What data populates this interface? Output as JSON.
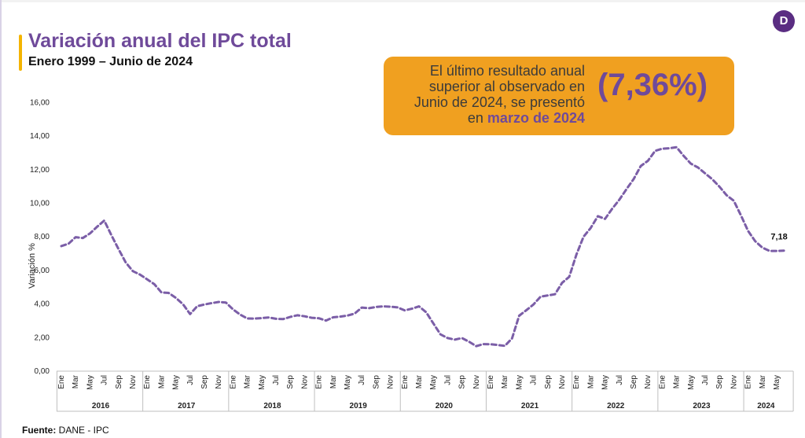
{
  "header": {
    "title": "Variación anual del IPC total",
    "subtitle": "Enero 1999 – Junio de 2024",
    "logo_letter": "D"
  },
  "callout": {
    "line1": "El último resultado anual",
    "line2": "superior al observado en",
    "line3": "Junio de 2024, se presentó",
    "line4_prefix": "en ",
    "line4_highlight": "marzo de 2024",
    "value": "(7,36%)"
  },
  "footer": {
    "source_label": "Fuente:",
    "source_text": " DANE - IPC"
  },
  "colors": {
    "line": "#7b5ea7",
    "title": "#6f4a9a",
    "callout_bg": "#f0a020",
    "accent": "#f4b400"
  },
  "chart_data": {
    "type": "line",
    "ylabel": "Variación %",
    "ylim": [
      0,
      16
    ],
    "yticks": [
      "0,00",
      "2,00",
      "4,00",
      "6,00",
      "8,00",
      "10,00",
      "12,00",
      "14,00",
      "16,00"
    ],
    "grid": false,
    "month_tick_labels": [
      "Ene",
      "Mar",
      "May",
      "Jul",
      "Sep",
      "Nov"
    ],
    "years": [
      "2016",
      "2017",
      "2018",
      "2019",
      "2020",
      "2021",
      "2022",
      "2023",
      "2024"
    ],
    "end_label": "7,18",
    "series": [
      {
        "line_style": "dashed",
        "x": [
          "2016-01",
          "2016-02",
          "2016-03",
          "2016-04",
          "2016-05",
          "2016-06",
          "2016-07",
          "2016-08",
          "2016-09",
          "2016-10",
          "2016-11",
          "2016-12",
          "2017-01",
          "2017-02",
          "2017-03",
          "2017-04",
          "2017-05",
          "2017-06",
          "2017-07",
          "2017-08",
          "2017-09",
          "2017-10",
          "2017-11",
          "2017-12",
          "2018-01",
          "2018-02",
          "2018-03",
          "2018-04",
          "2018-05",
          "2018-06",
          "2018-07",
          "2018-08",
          "2018-09",
          "2018-10",
          "2018-11",
          "2018-12",
          "2019-01",
          "2019-02",
          "2019-03",
          "2019-04",
          "2019-05",
          "2019-06",
          "2019-07",
          "2019-08",
          "2019-09",
          "2019-10",
          "2019-11",
          "2019-12",
          "2020-01",
          "2020-02",
          "2020-03",
          "2020-04",
          "2020-05",
          "2020-06",
          "2020-07",
          "2020-08",
          "2020-09",
          "2020-10",
          "2020-11",
          "2020-12",
          "2021-01",
          "2021-02",
          "2021-03",
          "2021-04",
          "2021-05",
          "2021-06",
          "2021-07",
          "2021-08",
          "2021-09",
          "2021-10",
          "2021-11",
          "2021-12",
          "2022-01",
          "2022-02",
          "2022-03",
          "2022-04",
          "2022-05",
          "2022-06",
          "2022-07",
          "2022-08",
          "2022-09",
          "2022-10",
          "2022-11",
          "2022-12",
          "2023-01",
          "2023-02",
          "2023-03",
          "2023-04",
          "2023-05",
          "2023-06",
          "2023-07",
          "2023-08",
          "2023-09",
          "2023-10",
          "2023-11",
          "2023-12",
          "2024-01",
          "2024-02",
          "2024-03",
          "2024-04",
          "2024-05",
          "2024-06"
        ],
        "values": [
          7.45,
          7.59,
          7.98,
          7.93,
          8.2,
          8.6,
          8.97,
          8.1,
          7.27,
          6.48,
          5.96,
          5.75,
          5.47,
          5.18,
          4.69,
          4.66,
          4.37,
          3.99,
          3.4,
          3.87,
          3.97,
          4.05,
          4.12,
          4.09,
          3.68,
          3.37,
          3.14,
          3.13,
          3.16,
          3.2,
          3.12,
          3.1,
          3.23,
          3.33,
          3.27,
          3.18,
          3.15,
          3.01,
          3.21,
          3.25,
          3.31,
          3.43,
          3.79,
          3.75,
          3.82,
          3.86,
          3.84,
          3.8,
          3.62,
          3.72,
          3.86,
          3.51,
          2.85,
          2.19,
          1.97,
          1.88,
          1.97,
          1.75,
          1.49,
          1.61,
          1.6,
          1.56,
          1.51,
          1.95,
          3.3,
          3.63,
          3.97,
          4.44,
          4.51,
          4.58,
          5.26,
          5.62,
          6.94,
          8.01,
          8.53,
          9.23,
          9.07,
          9.67,
          10.21,
          10.84,
          11.44,
          12.22,
          12.53,
          13.12,
          13.25,
          13.28,
          13.34,
          12.82,
          12.36,
          12.13,
          11.78,
          11.43,
          10.99,
          10.48,
          10.15,
          9.28,
          8.35,
          7.74,
          7.36,
          7.16,
          7.16,
          7.18
        ]
      }
    ]
  }
}
